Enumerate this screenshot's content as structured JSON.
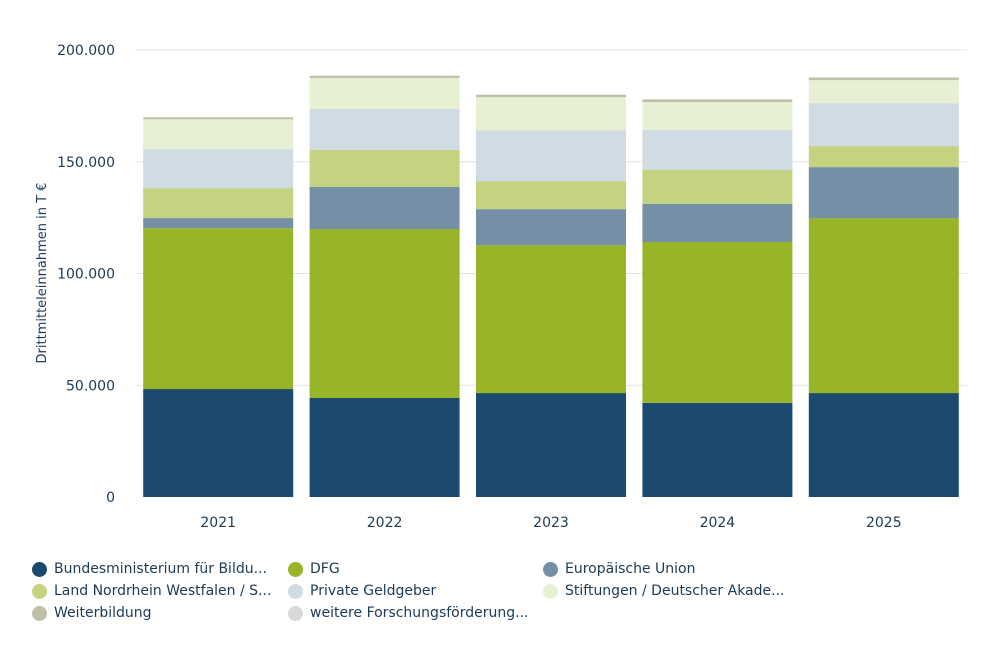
{
  "chart_data": {
    "type": "bar",
    "stacked": true,
    "title": "",
    "xlabel": "",
    "ylabel": "Drittmitteleinnahmen in T €",
    "ylim": [
      0,
      200000
    ],
    "yticks": [
      "0",
      "50.000",
      "100.000",
      "150.000",
      "200.000"
    ],
    "ytick_values": [
      0,
      50000,
      100000,
      150000,
      200000
    ],
    "grid": true,
    "legend_position": "bottom",
    "categories": [
      "2021",
      "2022",
      "2023",
      "2024",
      "2025"
    ],
    "series": [
      {
        "name": "Bundesministerium für Bildu...",
        "color": "#1b4a6e",
        "values": [
          48300,
          44300,
          46500,
          42100,
          46500
        ]
      },
      {
        "name": "DFG",
        "color": "#98b428",
        "values": [
          72000,
          75600,
          66200,
          72000,
          78300
        ]
      },
      {
        "name": "Europäische Union",
        "color": "#7590a6",
        "values": [
          4500,
          18800,
          16100,
          17000,
          22800
        ]
      },
      {
        "name": "Land Nordrhein Westfalen / S...",
        "color": "#c3d37f",
        "values": [
          13400,
          16600,
          12500,
          15200,
          9400
        ]
      },
      {
        "name": "Private Geldgeber",
        "color": "#d0dbe3",
        "values": [
          17400,
          18300,
          22800,
          17900,
          19200
        ]
      },
      {
        "name": "Stiftungen / Deutscher Akade...",
        "color": "#e8f0d4",
        "values": [
          13400,
          13900,
          14800,
          12500,
          10300
        ]
      },
      {
        "name": "Weiterbildung",
        "color": "#c0bfa8",
        "values": [
          900,
          1000,
          1100,
          1200,
          1200
        ]
      },
      {
        "name": "weitere Forschungsförderung...",
        "color": "#d9d9d9",
        "values": [
          0,
          0,
          0,
          0,
          0
        ]
      }
    ]
  }
}
